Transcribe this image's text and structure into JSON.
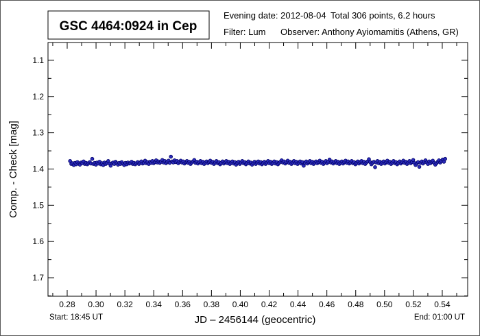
{
  "header": {
    "title": "GSC 4464:0924 in Cep",
    "evening_date": "Evening date: 2012-08-04",
    "total": "Total 306 points, 6.2 hours",
    "filter": "Filter: Lum",
    "observer": "Observer: Anthony Ayiomamitis (Athens, GR)"
  },
  "footer": {
    "start": "Start: 18:45 UT",
    "end": "End: 01:00 UT"
  },
  "colors": {
    "marker_fill": "#2b2bb8",
    "marker_stroke": "#000066"
  },
  "chart_data": {
    "type": "scatter",
    "title": "GSC 4464:0924 in Cep",
    "xlabel": "JD – 2456144  (geocentric)",
    "ylabel": "Comp. - Check [mag]",
    "xlim": [
      0.2667,
      0.5576
    ],
    "ylim": [
      1.751,
      1.051
    ],
    "y_inverted": true,
    "xticks": [
      "0.28",
      "0.30",
      "0.32",
      "0.34",
      "0.36",
      "0.38",
      "0.40",
      "0.42",
      "0.44",
      "0.46",
      "0.48",
      "0.50",
      "0.52",
      "0.54"
    ],
    "yticks": [
      "1.1",
      "1.2",
      "1.3",
      "1.4",
      "1.5",
      "1.6",
      "1.7"
    ],
    "grid": false,
    "x_start": 0.282,
    "x_end": 0.542,
    "series": [
      {
        "name": "Comp - Check",
        "y": [
          1.378,
          1.386,
          1.384,
          1.389,
          1.383,
          1.387,
          1.381,
          1.385,
          1.388,
          1.382,
          1.384,
          1.379,
          1.386,
          1.383,
          1.387,
          1.384,
          1.381,
          1.385,
          1.372,
          1.386,
          1.383,
          1.388,
          1.382,
          1.385,
          1.38,
          1.387,
          1.384,
          1.389,
          1.382,
          1.386,
          1.383,
          1.378,
          1.385,
          1.391,
          1.384,
          1.382,
          1.386,
          1.38,
          1.384,
          1.388,
          1.383,
          1.386,
          1.381,
          1.385,
          1.389,
          1.383,
          1.387,
          1.382,
          1.385,
          1.384,
          1.38,
          1.386,
          1.383,
          1.387,
          1.384,
          1.381,
          1.386,
          1.382,
          1.379,
          1.385,
          1.383,
          1.377,
          1.384,
          1.381,
          1.386,
          1.38,
          1.383,
          1.378,
          1.384,
          1.381,
          1.376,
          1.382,
          1.379,
          1.383,
          1.38,
          1.375,
          1.382,
          1.378,
          1.384,
          1.38,
          1.377,
          1.383,
          1.366,
          1.379,
          1.382,
          1.376,
          1.381,
          1.378,
          1.384,
          1.38,
          1.377,
          1.382,
          1.379,
          1.385,
          1.381,
          1.378,
          1.383,
          1.38,
          1.386,
          1.382,
          1.379,
          1.375,
          1.383,
          1.38,
          1.385,
          1.381,
          1.378,
          1.384,
          1.38,
          1.386,
          1.382,
          1.379,
          1.384,
          1.381,
          1.377,
          1.383,
          1.38,
          1.386,
          1.382,
          1.378,
          1.384,
          1.381,
          1.387,
          1.383,
          1.379,
          1.385,
          1.381,
          1.378,
          1.384,
          1.38,
          1.386,
          1.382,
          1.379,
          1.385,
          1.381,
          1.388,
          1.383,
          1.38,
          1.386,
          1.382,
          1.378,
          1.384,
          1.381,
          1.387,
          1.383,
          1.379,
          1.385,
          1.382,
          1.388,
          1.384,
          1.38,
          1.386,
          1.382,
          1.379,
          1.385,
          1.381,
          1.387,
          1.383,
          1.38,
          1.386,
          1.382,
          1.378,
          1.384,
          1.38,
          1.386,
          1.383,
          1.379,
          1.385,
          1.381,
          1.387,
          1.383,
          1.38,
          1.376,
          1.382,
          1.379,
          1.385,
          1.381,
          1.377,
          1.383,
          1.38,
          1.386,
          1.382,
          1.378,
          1.384,
          1.38,
          1.386,
          1.382,
          1.379,
          1.385,
          1.381,
          1.391,
          1.383,
          1.379,
          1.385,
          1.381,
          1.378,
          1.384,
          1.38,
          1.386,
          1.382,
          1.379,
          1.384,
          1.381,
          1.377,
          1.383,
          1.38,
          1.386,
          1.382,
          1.378,
          1.384,
          1.38,
          1.374,
          1.382,
          1.379,
          1.385,
          1.381,
          1.378,
          1.384,
          1.38,
          1.386,
          1.382,
          1.379,
          1.385,
          1.381,
          1.377,
          1.383,
          1.379,
          1.385,
          1.382,
          1.378,
          1.384,
          1.381,
          1.387,
          1.383,
          1.379,
          1.385,
          1.381,
          1.378,
          1.384,
          1.38,
          1.386,
          1.382,
          1.379,
          1.373,
          1.381,
          1.387,
          1.383,
          1.38,
          1.395,
          1.382,
          1.378,
          1.384,
          1.38,
          1.386,
          1.382,
          1.379,
          1.385,
          1.381,
          1.377,
          1.383,
          1.38,
          1.386,
          1.382,
          1.378,
          1.384,
          1.381,
          1.387,
          1.383,
          1.379,
          1.385,
          1.381,
          1.377,
          1.383,
          1.38,
          1.386,
          1.382,
          1.378,
          1.384,
          1.381,
          1.375,
          1.383,
          1.389,
          1.385,
          1.381,
          1.394,
          1.383,
          1.379,
          1.385,
          1.38,
          1.376,
          1.382,
          1.386,
          1.379,
          1.384,
          1.38,
          1.377,
          1.383,
          1.388,
          1.384,
          1.38,
          1.376,
          1.382,
          1.378,
          1.374,
          1.38,
          1.372
        ]
      }
    ]
  }
}
